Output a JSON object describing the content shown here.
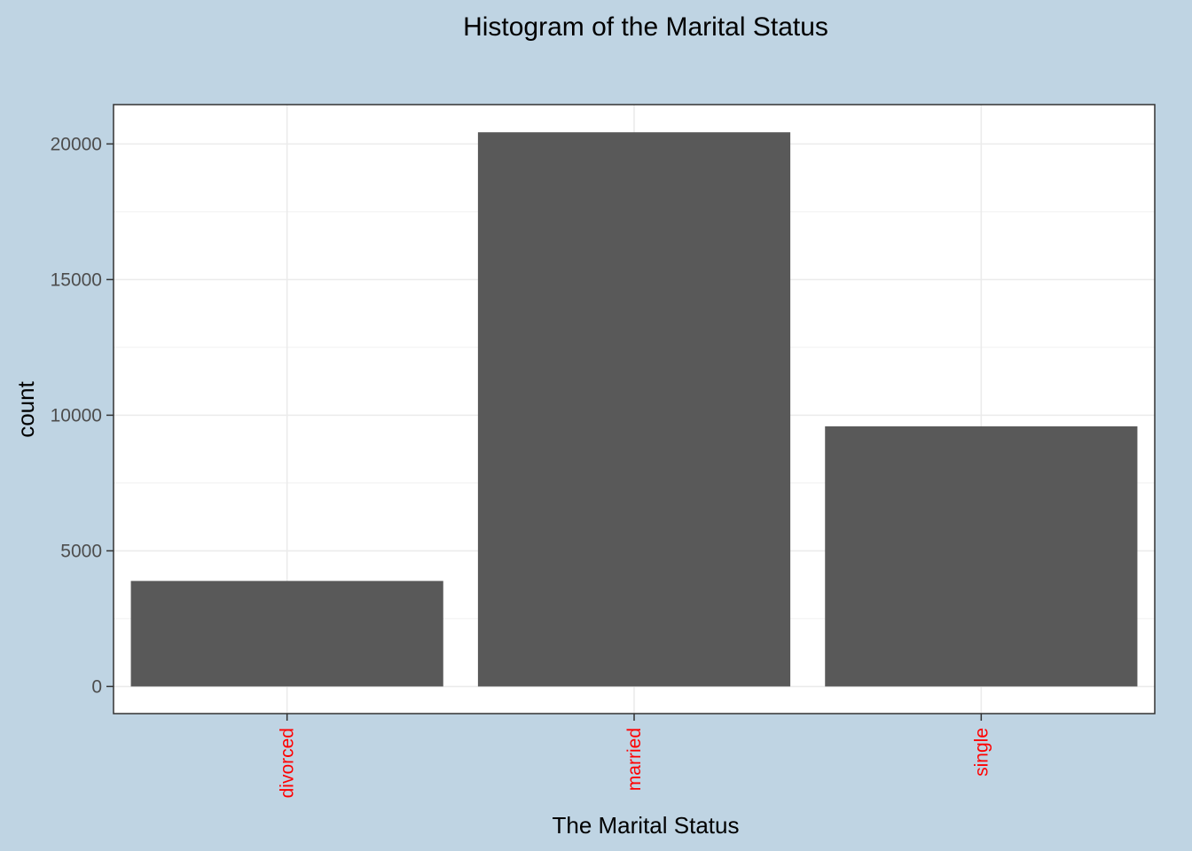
{
  "chart_data": {
    "type": "bar",
    "title": "Histogram of the Marital Status",
    "xlabel": "The Marital Status",
    "ylabel": "count",
    "categories": [
      "divorced",
      "married",
      "single"
    ],
    "values": [
      3890,
      20430,
      9590
    ],
    "ylim": [
      -1000,
      21450
    ],
    "yticks": [
      0,
      5000,
      10000,
      15000,
      20000
    ],
    "ytick_labels": [
      "0",
      "5000",
      "10000",
      "15000",
      "20000"
    ],
    "grid": true,
    "legend": "none",
    "colors": {
      "background": "#bfd4e3",
      "panel": "#ffffff",
      "bar": "#595959",
      "grid": "#ebebeb",
      "axis_text": "#4d4d4d",
      "category_text": "#ff0000",
      "title_text": "#000000"
    }
  }
}
